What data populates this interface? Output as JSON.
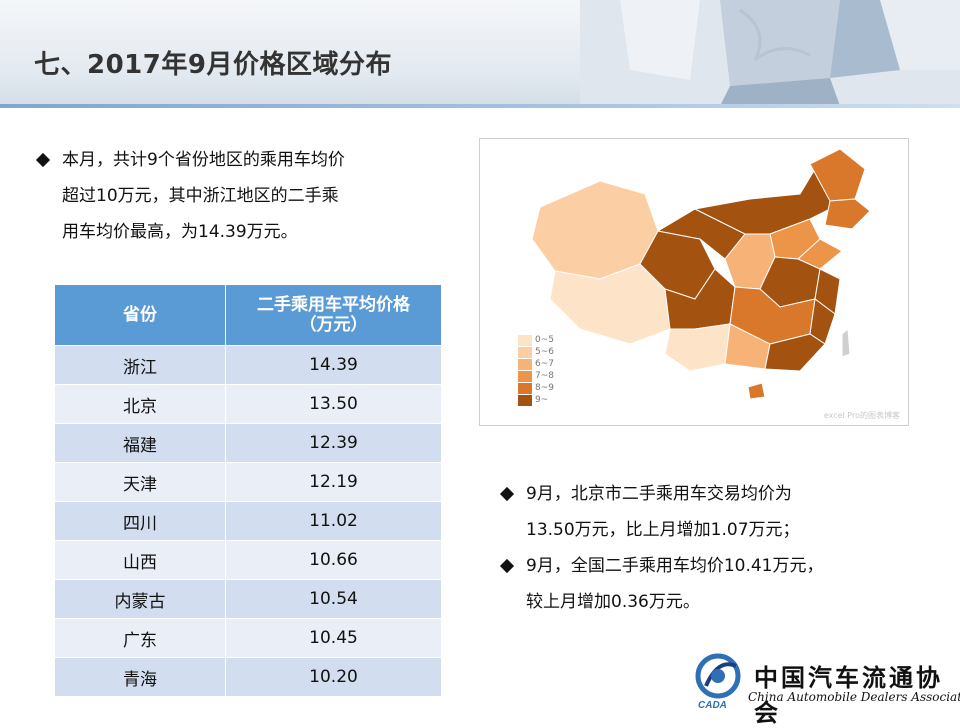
{
  "page_title": "七、2017年9月价格区域分布",
  "intro_bullet": [
    "本月，共计9个省份地区的乘用车均价",
    "超过10万元，其中浙江地区的二手乘",
    "用车均价最高，为14.39万元。"
  ],
  "table": {
    "headers": {
      "province": "省份",
      "avg_price_line1": "二手乘用车平均价格",
      "avg_price_line2": "（万元）"
    },
    "rows": [
      {
        "province": "浙江",
        "price": "14.39"
      },
      {
        "province": "北京",
        "price": "13.50"
      },
      {
        "province": "福建",
        "price": "12.39"
      },
      {
        "province": "天津",
        "price": "12.19"
      },
      {
        "province": "四川",
        "price": "11.02"
      },
      {
        "province": "山西",
        "price": "10.66"
      },
      {
        "province": "内蒙古",
        "price": "10.54"
      },
      {
        "province": "广东",
        "price": "10.45"
      },
      {
        "province": "青海",
        "price": "10.20"
      }
    ]
  },
  "map": {
    "legend": [
      {
        "label": "0~5",
        "color": "#fde3c8"
      },
      {
        "label": "5~6",
        "color": "#fbcfa3"
      },
      {
        "label": "6~7",
        "color": "#f7b277"
      },
      {
        "label": "7~8",
        "color": "#ec9448"
      },
      {
        "label": "8~9",
        "color": "#d9782b"
      },
      {
        "label": "9~",
        "color": "#a3520f"
      }
    ],
    "watermark": "excel Pro的图表博客"
  },
  "right_bullets": [
    [
      "9月，北京市二手乘用车交易均价为",
      "13.50万元，比上月增加1.07万元；"
    ],
    [
      "9月，全国二手乘用车均价10.41万元，",
      "较上月增加0.36万元。"
    ]
  ],
  "logo": {
    "cn": "中国汽车流通协会",
    "en": "China Automobile Dealers Association",
    "mark_text": "CADA"
  }
}
